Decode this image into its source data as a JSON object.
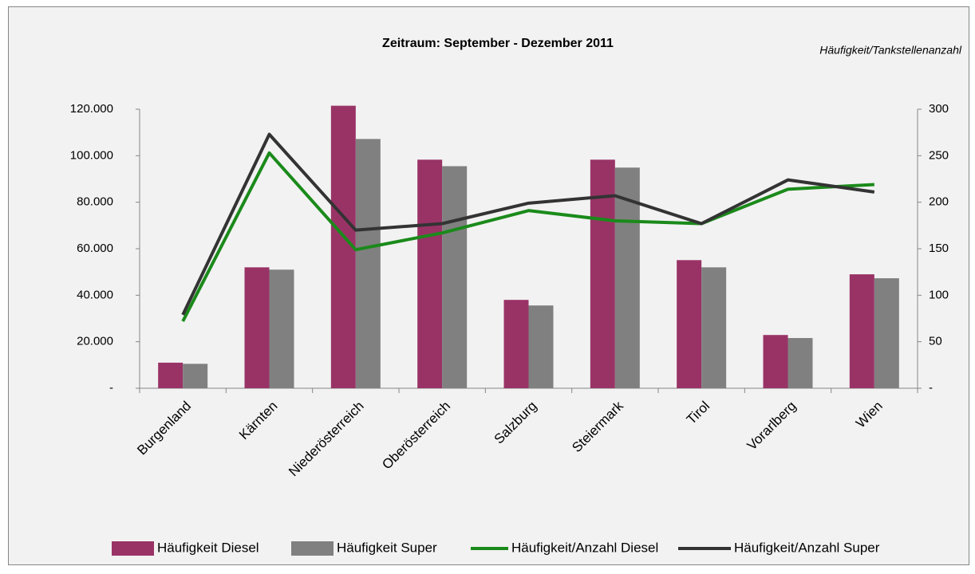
{
  "chart_data": {
    "type": "bar-line",
    "title": "Zeitraum:  September - Dezember 2011",
    "y2_label": "Häufigkeit/Tankstellenanzahl",
    "categories": [
      "Burgenland",
      "Kärnten",
      "Niederösterreich",
      "Oberösterreich",
      "Salzburg",
      "Steiermark",
      "Tirol",
      "Vorarlberg",
      "Wien"
    ],
    "series": [
      {
        "name": "Häufigkeit Diesel",
        "type": "bar",
        "color": "#993366",
        "values": [
          11000,
          52000,
          121500,
          98300,
          38000,
          98300,
          55100,
          22900,
          49000
        ]
      },
      {
        "name": "Häufigkeit Super",
        "type": "bar",
        "color": "#808080",
        "values": [
          10500,
          51000,
          107200,
          95500,
          35600,
          94900,
          52000,
          21600,
          47300
        ]
      },
      {
        "name": "Häufigkeit/Anzahl Diesel",
        "type": "line",
        "axis": "y2",
        "color": "#1a8a1a",
        "values": [
          72,
          253,
          149,
          167,
          191,
          180,
          177,
          214,
          219
        ]
      },
      {
        "name": "Häufigkeit/Anzahl Super",
        "type": "line",
        "axis": "y2",
        "color": "#333333",
        "values": [
          79,
          273,
          170,
          177,
          199,
          207,
          177,
          224,
          211
        ]
      }
    ],
    "ylim": [
      0,
      120000
    ],
    "yticks": [
      {
        "value": 0,
        "label": "-"
      },
      {
        "value": 20000,
        "label": "20.000"
      },
      {
        "value": 40000,
        "label": "40.000"
      },
      {
        "value": 60000,
        "label": "60.000"
      },
      {
        "value": 80000,
        "label": "80.000"
      },
      {
        "value": 100000,
        "label": "100.000"
      },
      {
        "value": 120000,
        "label": "120.000"
      }
    ],
    "y2lim": [
      0,
      300
    ],
    "y2ticks": [
      {
        "value": 0,
        "label": "-"
      },
      50,
      100,
      150,
      200,
      250,
      300
    ],
    "legend": "bottom"
  }
}
